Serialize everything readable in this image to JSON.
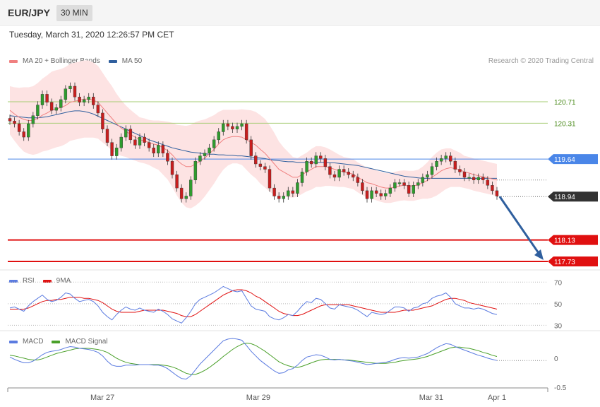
{
  "header": {
    "pair": "EUR/JPY",
    "timeframe": "30 MIN",
    "timestamp": "Tuesday, March 31, 2020 12:26:57 PM CET"
  },
  "legends": {
    "price": [
      {
        "label": "MA 20 + Bollinger Bands",
        "color": "#f08080"
      },
      {
        "label": "MA 50",
        "color": "#2f5f9e"
      }
    ],
    "rsi": [
      {
        "label": "RSI",
        "color": "#5b7be0"
      },
      {
        "label": "9MA",
        "color": "#e01010"
      }
    ],
    "macd": [
      {
        "label": "MACD",
        "color": "#5b7be0"
      },
      {
        "label": "MACD Signal",
        "color": "#4aa02a"
      }
    ]
  },
  "credit": "Research © 2020 Trading Central",
  "colors": {
    "bull": "#2e9b2e",
    "bear": "#c81e1e",
    "bollinger_fill": "#fde3e3",
    "ma20": "#f08080",
    "ma50": "#2f5f9e",
    "resistance": "#a6cc73",
    "pivot": "#4a86e8",
    "support": "#e01010",
    "last_price": "#333333",
    "arrow": "#2f5f9e"
  },
  "chart_data": {
    "type": "candlestick",
    "ylim": [
      117.5,
      121.2
    ],
    "x_ticks": [
      "Mar 27",
      "Mar 29",
      "Mar 31",
      "Apr 1"
    ],
    "levels": [
      {
        "value": 120.71,
        "label": "120.71",
        "kind": "resistance"
      },
      {
        "value": 120.31,
        "label": "120.31",
        "kind": "resistance"
      },
      {
        "value": 119.64,
        "label": "119.64",
        "kind": "pivot"
      },
      {
        "value": 118.94,
        "label": "118.94",
        "kind": "last"
      },
      {
        "value": 118.13,
        "label": "118.13",
        "kind": "support"
      },
      {
        "value": 117.73,
        "label": "117.73",
        "kind": "support"
      }
    ],
    "last_price": 118.94,
    "forecast_target": 117.73,
    "price_path": [
      120.35,
      120.3,
      120.15,
      120.05,
      120.3,
      120.45,
      120.65,
      120.85,
      120.7,
      120.55,
      120.6,
      120.75,
      120.95,
      121.0,
      120.8,
      120.7,
      120.75,
      120.8,
      120.65,
      120.5,
      120.2,
      119.95,
      119.7,
      119.85,
      120.05,
      120.2,
      120.0,
      119.9,
      120.05,
      119.95,
      119.85,
      119.75,
      119.9,
      119.75,
      119.6,
      119.35,
      119.1,
      118.9,
      118.95,
      119.25,
      119.6,
      119.7,
      119.75,
      119.85,
      120.0,
      120.15,
      120.3,
      120.25,
      120.2,
      120.25,
      120.3,
      120.0,
      119.7,
      119.55,
      119.5,
      119.45,
      119.1,
      118.95,
      118.9,
      118.95,
      119.05,
      119.0,
      119.2,
      119.4,
      119.6,
      119.55,
      119.7,
      119.65,
      119.5,
      119.35,
      119.3,
      119.45,
      119.4,
      119.35,
      119.3,
      119.2,
      119.05,
      118.9,
      119.05,
      119.0,
      118.95,
      119.0,
      119.1,
      119.2,
      119.2,
      119.15,
      119.0,
      119.15,
      119.2,
      119.3,
      119.35,
      119.5,
      119.6,
      119.65,
      119.7,
      119.6,
      119.45,
      119.4,
      119.3,
      119.3,
      119.25,
      119.3,
      119.25,
      119.15,
      119.05,
      118.95
    ],
    "ma20": [
      120.55,
      120.48,
      120.42,
      120.38,
      120.36,
      120.36,
      120.4,
      120.46,
      120.5,
      120.55,
      120.58,
      120.6,
      120.64,
      120.7,
      120.72,
      120.74,
      120.76,
      120.76,
      120.74,
      120.7,
      120.6,
      120.5,
      120.4,
      120.3,
      120.22,
      120.16,
      120.1,
      120.05,
      120.0,
      119.98,
      119.95,
      119.92,
      119.9,
      119.85,
      119.8,
      119.72,
      119.62,
      119.55,
      119.5,
      119.5,
      119.55,
      119.6,
      119.66,
      119.74,
      119.82,
      119.92,
      120.0,
      120.04,
      120.06,
      120.06,
      120.05,
      120.0,
      119.95,
      119.9,
      119.82,
      119.75,
      119.65,
      119.55,
      119.45,
      119.4,
      119.35,
      119.3,
      119.3,
      119.35,
      119.4,
      119.45,
      119.5,
      119.5,
      119.5,
      119.48,
      119.45,
      119.42,
      119.4,
      119.38,
      119.36,
      119.3,
      119.25,
      119.2,
      119.18,
      119.15,
      119.12,
      119.1,
      119.1,
      119.12,
      119.14,
      119.15,
      119.14,
      119.14,
      119.16,
      119.2,
      119.24,
      119.3,
      119.36,
      119.42,
      119.46,
      119.48,
      119.46,
      119.44,
      119.4,
      119.38,
      119.35,
      119.33,
      119.31,
      119.29,
      119.27,
      119.25
    ],
    "ma50": [
      120.45,
      120.44,
      120.43,
      120.42,
      120.41,
      120.41,
      120.41,
      120.42,
      120.43,
      120.45,
      120.47,
      120.49,
      120.51,
      120.53,
      120.54,
      120.54,
      120.53,
      120.51,
      120.48,
      120.44,
      120.4,
      120.36,
      120.32,
      120.28,
      120.24,
      120.2,
      120.16,
      120.12,
      120.08,
      120.04,
      120.0,
      119.97,
      119.94,
      119.91,
      119.88,
      119.85,
      119.83,
      119.81,
      119.79,
      119.77,
      119.76,
      119.75,
      119.74,
      119.73,
      119.73,
      119.72,
      119.72,
      119.71,
      119.71,
      119.7,
      119.7,
      119.69,
      119.68,
      119.67,
      119.66,
      119.65,
      119.63,
      119.62,
      119.61,
      119.6,
      119.59,
      119.59,
      119.58,
      119.58,
      119.58,
      119.58,
      119.58,
      119.58,
      119.58,
      119.57,
      119.57,
      119.56,
      119.55,
      119.54,
      119.53,
      119.52,
      119.5,
      119.48,
      119.46,
      119.44,
      119.42,
      119.4,
      119.38,
      119.36,
      119.34,
      119.32,
      119.31,
      119.3,
      119.29,
      119.28,
      119.28,
      119.28,
      119.28,
      119.28,
      119.28,
      119.28,
      119.28,
      119.28,
      119.28,
      119.28,
      119.28,
      119.28,
      119.28,
      119.28,
      119.28,
      119.28
    ],
    "bb_width": [
      0.45,
      0.5,
      0.55,
      0.6,
      0.62,
      0.64,
      0.66,
      0.68,
      0.7,
      0.72,
      0.72,
      0.72,
      0.72,
      0.72,
      0.72,
      0.72,
      0.72,
      0.72,
      0.7,
      0.68,
      0.65,
      0.62,
      0.6,
      0.56,
      0.52,
      0.48,
      0.46,
      0.44,
      0.42,
      0.42,
      0.42,
      0.44,
      0.46,
      0.5,
      0.54,
      0.6,
      0.66,
      0.72,
      0.76,
      0.78,
      0.78,
      0.76,
      0.72,
      0.68,
      0.64,
      0.6,
      0.56,
      0.52,
      0.5,
      0.5,
      0.52,
      0.56,
      0.6,
      0.62,
      0.64,
      0.64,
      0.62,
      0.58,
      0.52,
      0.46,
      0.42,
      0.38,
      0.36,
      0.36,
      0.36,
      0.38,
      0.38,
      0.38,
      0.36,
      0.34,
      0.32,
      0.3,
      0.28,
      0.28,
      0.28,
      0.28,
      0.28,
      0.28,
      0.28,
      0.28,
      0.28,
      0.28,
      0.28,
      0.28,
      0.28,
      0.28,
      0.28,
      0.28,
      0.28,
      0.3,
      0.34,
      0.38,
      0.4,
      0.4,
      0.38,
      0.36,
      0.34,
      0.32,
      0.3,
      0.3,
      0.3,
      0.3,
      0.3,
      0.3,
      0.3,
      0.3
    ],
    "rsi": {
      "ylim": [
        25,
        80
      ],
      "ticks": [
        70,
        50,
        30
      ],
      "rsi": [
        46,
        47,
        45,
        43,
        48,
        52,
        55,
        58,
        54,
        52,
        53,
        56,
        60,
        59,
        55,
        52,
        53,
        54,
        52,
        48,
        42,
        38,
        35,
        40,
        44,
        47,
        45,
        44,
        46,
        44,
        43,
        42,
        45,
        43,
        40,
        36,
        34,
        32,
        37,
        43,
        50,
        54,
        56,
        58,
        60,
        63,
        66,
        64,
        62,
        61,
        62,
        55,
        48,
        45,
        44,
        43,
        38,
        36,
        35,
        37,
        40,
        39,
        43,
        48,
        52,
        51,
        55,
        54,
        50,
        46,
        45,
        49,
        48,
        47,
        46,
        44,
        41,
        38,
        42,
        41,
        40,
        41,
        44,
        47,
        47,
        46,
        43,
        46,
        47,
        50,
        51,
        55,
        57,
        58,
        60,
        56,
        50,
        48,
        46,
        46,
        45,
        46,
        45,
        43,
        41,
        40
      ],
      "ma": [
        45,
        45,
        45,
        45,
        46,
        48,
        50,
        52,
        53,
        53,
        54,
        54,
        55,
        56,
        56,
        56,
        55,
        55,
        54,
        53,
        51,
        48,
        45,
        43,
        42,
        42,
        42,
        42,
        43,
        44,
        44,
        44,
        44,
        44,
        43,
        42,
        41,
        39,
        38,
        38,
        40,
        43,
        46,
        49,
        52,
        55,
        58,
        60,
        62,
        63,
        63,
        62,
        60,
        57,
        55,
        52,
        49,
        46,
        43,
        41,
        40,
        39,
        39,
        40,
        42,
        44,
        46,
        48,
        49,
        49,
        49,
        49,
        49,
        49,
        48,
        47,
        46,
        45,
        44,
        43,
        42,
        42,
        42,
        42,
        43,
        44,
        44,
        44,
        45,
        46,
        47,
        48,
        50,
        52,
        54,
        55,
        55,
        54,
        53,
        51,
        50,
        49,
        48,
        47,
        46,
        45
      ]
    },
    "macd": {
      "ylim": [
        -0.5,
        0.45
      ],
      "ticks": [
        0,
        -0.5
      ],
      "macd": [
        0.02,
        -0.02,
        -0.05,
        -0.08,
        -0.08,
        -0.05,
        0.0,
        0.06,
        0.1,
        0.12,
        0.13,
        0.15,
        0.18,
        0.2,
        0.19,
        0.17,
        0.16,
        0.15,
        0.13,
        0.1,
        0.04,
        -0.05,
        -0.12,
        -0.14,
        -0.14,
        -0.12,
        -0.12,
        -0.12,
        -0.11,
        -0.11,
        -0.11,
        -0.12,
        -0.12,
        -0.14,
        -0.18,
        -0.24,
        -0.3,
        -0.35,
        -0.36,
        -0.3,
        -0.2,
        -0.1,
        -0.02,
        0.06,
        0.14,
        0.22,
        0.3,
        0.33,
        0.34,
        0.33,
        0.31,
        0.22,
        0.12,
        0.04,
        -0.04,
        -0.1,
        -0.16,
        -0.22,
        -0.26,
        -0.25,
        -0.2,
        -0.18,
        -0.12,
        -0.04,
        0.02,
        0.04,
        0.06,
        0.05,
        0.02,
        -0.02,
        -0.03,
        -0.02,
        -0.03,
        -0.04,
        -0.05,
        -0.07,
        -0.09,
        -0.11,
        -0.1,
        -0.09,
        -0.08,
        -0.07,
        -0.05,
        -0.02,
        0.0,
        0.01,
        0.0,
        0.01,
        0.02,
        0.05,
        0.08,
        0.13,
        0.18,
        0.22,
        0.25,
        0.24,
        0.2,
        0.17,
        0.14,
        0.11,
        0.08,
        0.05,
        0.03,
        0.0,
        -0.02,
        -0.04
      ],
      "signal": [
        0.05,
        0.04,
        0.02,
        0.0,
        -0.02,
        -0.03,
        -0.03,
        -0.01,
        0.02,
        0.05,
        0.08,
        0.1,
        0.12,
        0.14,
        0.16,
        0.17,
        0.17,
        0.17,
        0.16,
        0.15,
        0.13,
        0.1,
        0.05,
        0.0,
        -0.04,
        -0.07,
        -0.09,
        -0.1,
        -0.11,
        -0.11,
        -0.11,
        -0.11,
        -0.11,
        -0.12,
        -0.13,
        -0.15,
        -0.18,
        -0.22,
        -0.26,
        -0.28,
        -0.28,
        -0.25,
        -0.21,
        -0.16,
        -0.1,
        -0.04,
        0.03,
        0.09,
        0.15,
        0.2,
        0.24,
        0.26,
        0.25,
        0.22,
        0.17,
        0.12,
        0.06,
        0.0,
        -0.06,
        -0.1,
        -0.13,
        -0.15,
        -0.16,
        -0.14,
        -0.11,
        -0.08,
        -0.05,
        -0.03,
        -0.02,
        -0.02,
        -0.02,
        -0.02,
        -0.03,
        -0.03,
        -0.04,
        -0.05,
        -0.06,
        -0.07,
        -0.08,
        -0.09,
        -0.09,
        -0.09,
        -0.08,
        -0.07,
        -0.05,
        -0.04,
        -0.03,
        -0.02,
        -0.01,
        0.01,
        0.03,
        0.06,
        0.09,
        0.12,
        0.15,
        0.18,
        0.19,
        0.19,
        0.18,
        0.17,
        0.15,
        0.13,
        0.1,
        0.08,
        0.05,
        0.03
      ]
    }
  }
}
